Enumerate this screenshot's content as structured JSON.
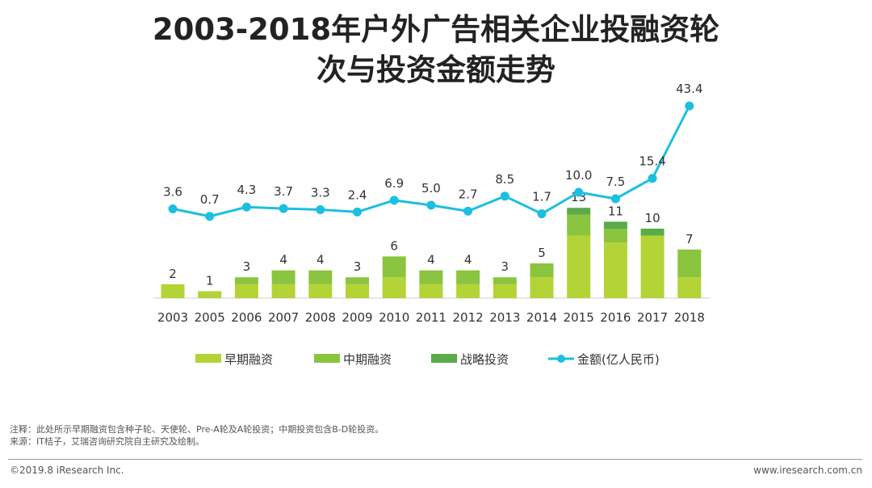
{
  "chart_data": {
    "type": "bar+line",
    "title_line1": "2003-2018年户外广告相关企业投融资轮",
    "title_line2": "次与投资金额走势",
    "categories": [
      "2003",
      "2005",
      "2006",
      "2007",
      "2008",
      "2009",
      "2010",
      "2011",
      "2012",
      "2013",
      "2014",
      "2015",
      "2016",
      "2017",
      "2018"
    ],
    "bar_totals": [
      2,
      1,
      3,
      4,
      4,
      3,
      6,
      4,
      4,
      3,
      5,
      13,
      11,
      10,
      7
    ],
    "series": [
      {
        "name": "早期融资",
        "kind": "bar",
        "color": "#b3d336",
        "values": [
          2,
          1,
          2,
          2,
          2,
          2,
          3,
          2,
          2,
          2,
          3,
          9,
          8,
          9,
          3
        ]
      },
      {
        "name": "中期融资",
        "kind": "bar",
        "color": "#8bc43f",
        "values": [
          0,
          0,
          1,
          2,
          2,
          1,
          3,
          2,
          2,
          1,
          2,
          3,
          2,
          0,
          4
        ]
      },
      {
        "name": "战略投资",
        "kind": "bar",
        "color": "#5aab4a",
        "values": [
          0,
          0,
          0,
          0,
          0,
          0,
          0,
          0,
          0,
          0,
          0,
          1,
          1,
          1,
          0
        ]
      },
      {
        "name": "金额(亿人民币)",
        "kind": "line",
        "color": "#1cbfe0",
        "values": [
          3.6,
          0.7,
          4.3,
          3.7,
          3.3,
          2.4,
          6.9,
          5.0,
          2.7,
          8.5,
          1.7,
          10.0,
          7.5,
          15.4,
          43.4
        ]
      }
    ],
    "line_labels": [
      "3.6",
      "0.7",
      "4.3",
      "3.7",
      "3.3",
      "2.4",
      "6.9",
      "5.0",
      "2.7",
      "8.5",
      "1.7",
      "10.0",
      "7.5",
      "15.4",
      "43.4"
    ],
    "legend_position": "bottom"
  },
  "notes": {
    "line1": "注释：此处所示早期融资包含种子轮、天使轮、Pre-A轮及A轮投资；中期投资包含B-D轮投资。",
    "line2": "来源：IT桔子，艾瑞咨询研究院自主研究及绘制。"
  },
  "footer": {
    "copyright": "©2019.8 iResearch Inc.",
    "website": "www.iresearch.com.cn"
  }
}
